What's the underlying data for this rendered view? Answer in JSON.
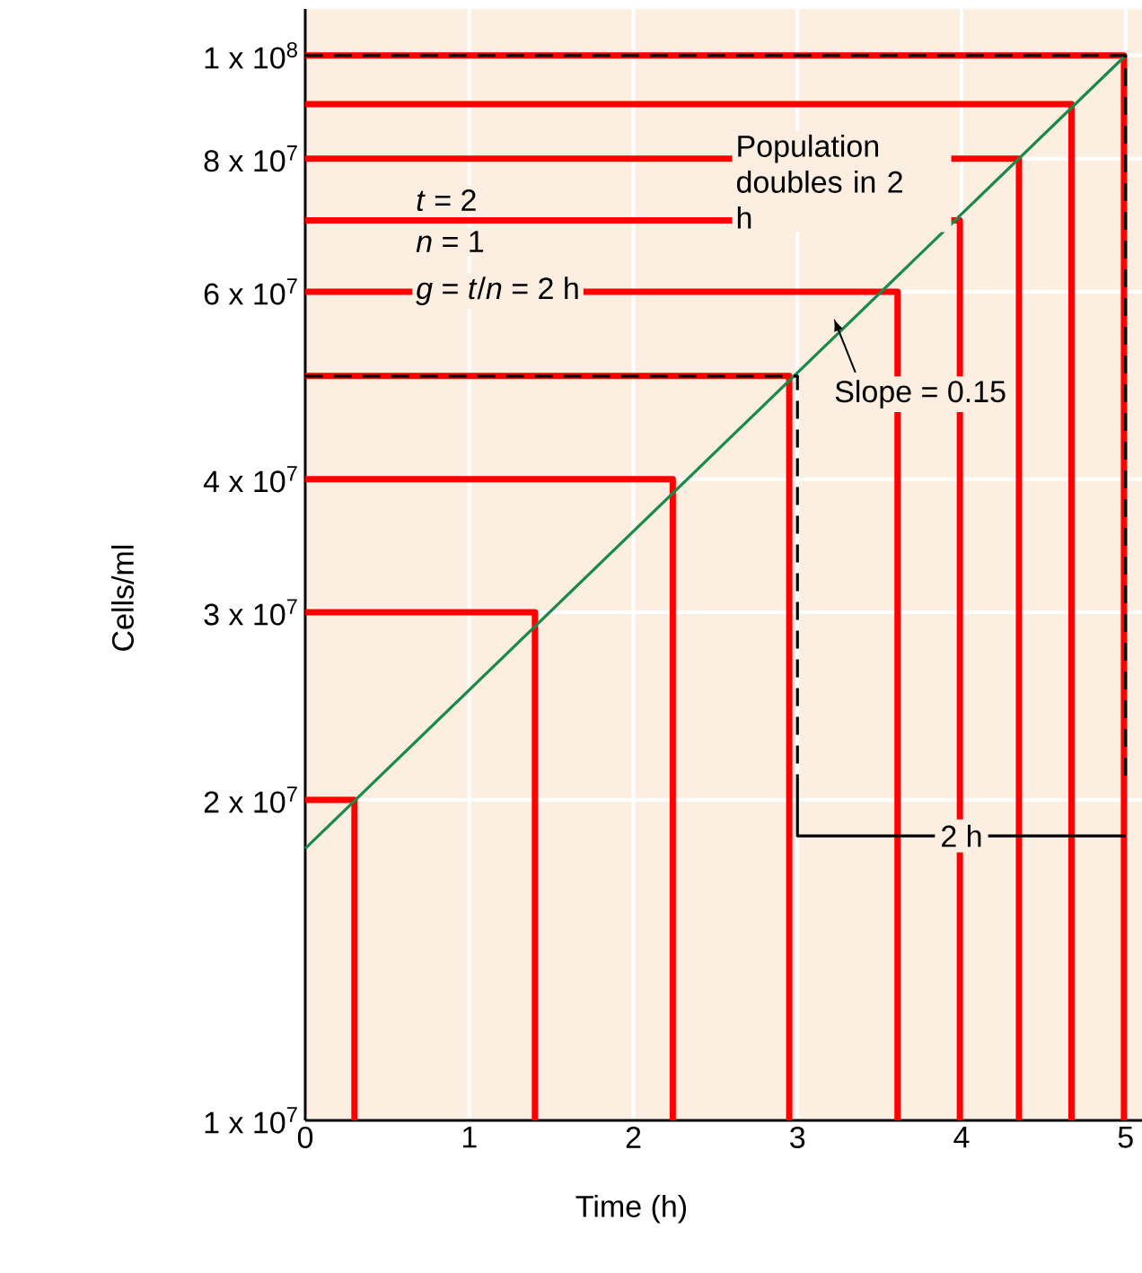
{
  "chart_data": {
    "type": "line",
    "xlabel": "Time (h)",
    "ylabel": "Cells/ml",
    "log": "y",
    "grid": true,
    "xlim": [
      0,
      5.1
    ],
    "ylim": [
      10000000,
      110600000
    ],
    "xticks": [
      0,
      1,
      2,
      3,
      4,
      5
    ],
    "yticks": [
      {
        "value": 10000000,
        "label": "1 x 10$^{7}$"
      },
      {
        "value": 20000000,
        "label": "2 x 10$^{7}$"
      },
      {
        "value": 30000000,
        "label": "3 x 10$^{7}$"
      },
      {
        "value": 40000000,
        "label": "4 x 10$^{7}$"
      },
      {
        "value": 60000000,
        "label": "6 x 10$^{7}$"
      },
      {
        "value": 80000000,
        "label": "8 x 10$^{7}$"
      },
      {
        "value": 100000000,
        "label": "1 x 10$^{8}$"
      }
    ],
    "series": [
      {
        "color": "#1a8a4a",
        "x": [
          0,
          5
        ],
        "values": [
          18000000,
          100000000
        ]
      },
      {
        "color": "#000000",
        "line_style": "dashed",
        "x": [
          0,
          3,
          3
        ],
        "values": [
          50000000,
          50000000,
          21000000
        ]
      },
      {
        "color": "#000000",
        "line_style": "dashed",
        "x": [
          0,
          5,
          5
        ],
        "values": [
          100000000,
          100000000,
          21000000
        ]
      },
      {
        "color": "#000000",
        "x": [
          3,
          3,
          5
        ],
        "values": [
          21000000,
          18500000,
          18500000
        ]
      },
      {
        "color": "#ff0000",
        "x": [
          0,
          0.3,
          0.3
        ],
        "values": [
          20000000,
          20000000,
          10000000
        ]
      },
      {
        "color": "#ff0000",
        "x": [
          0,
          1.4,
          1.4
        ],
        "values": [
          30000000,
          30000000,
          10000000
        ]
      },
      {
        "color": "#ff0000",
        "x": [
          0,
          2.24,
          2.24
        ],
        "values": [
          40000000,
          40000000,
          10000000
        ]
      },
      {
        "color": "#ff0000",
        "x": [
          0,
          2.95,
          2.95
        ],
        "values": [
          50000000,
          50000000,
          10000000
        ]
      },
      {
        "color": "#ff0000",
        "x": [
          0,
          3.61,
          3.61
        ],
        "values": [
          60000000,
          60000000,
          10000000
        ]
      },
      {
        "color": "#ff0000",
        "x": [
          0,
          3.99,
          3.99
        ],
        "values": [
          70000000,
          70000000,
          10000000
        ]
      },
      {
        "color": "#ff0000",
        "x": [
          0,
          4.35,
          4.35
        ],
        "values": [
          80000000,
          80000000,
          10000000
        ]
      },
      {
        "color": "#ff0000",
        "x": [
          0,
          4.67,
          4.67
        ],
        "values": [
          90000000,
          90000000,
          10000000
        ]
      },
      {
        "color": "#ff0000",
        "x": [
          0,
          4.99,
          4.99
        ],
        "values": [
          100000000,
          100000000,
          10000000
        ]
      }
    ],
    "annotations": [
      "*t* = 2",
      "*n* = 1",
      "*g* = *t*/*n* = 2 h",
      "Population doubles in 2 h",
      "Slope = 0.15",
      {
        "text": "2 h",
        "x": 4,
        "y": 18500000
      }
    ]
  }
}
